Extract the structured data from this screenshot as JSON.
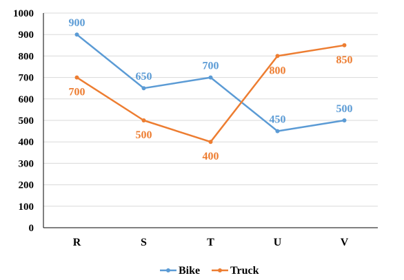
{
  "chart_data": {
    "type": "line",
    "title": "",
    "xlabel": "",
    "ylabel": "",
    "categories": [
      "R",
      "S",
      "T",
      "U",
      "V"
    ],
    "ylim": [
      0,
      1000
    ],
    "yticks": [
      "0",
      "100",
      "200",
      "300",
      "400",
      "500",
      "600",
      "700",
      "800",
      "900",
      "1000"
    ],
    "grid": true,
    "legend": "bottom",
    "series": [
      {
        "name": "Bike",
        "color": "#5B9BD5",
        "values": [
          900,
          650,
          700,
          450,
          500
        ],
        "labels": [
          "900",
          "650",
          "700",
          "450",
          "500"
        ],
        "label_side": [
          "above",
          "above",
          "above",
          "above",
          "above"
        ]
      },
      {
        "name": "Truck",
        "color": "#ED7D31",
        "values": [
          700,
          500,
          400,
          800,
          850
        ],
        "labels": [
          "700",
          "500",
          "400",
          "800",
          "850"
        ],
        "label_side": [
          "below",
          "below",
          "below",
          "below",
          "below"
        ]
      }
    ]
  }
}
